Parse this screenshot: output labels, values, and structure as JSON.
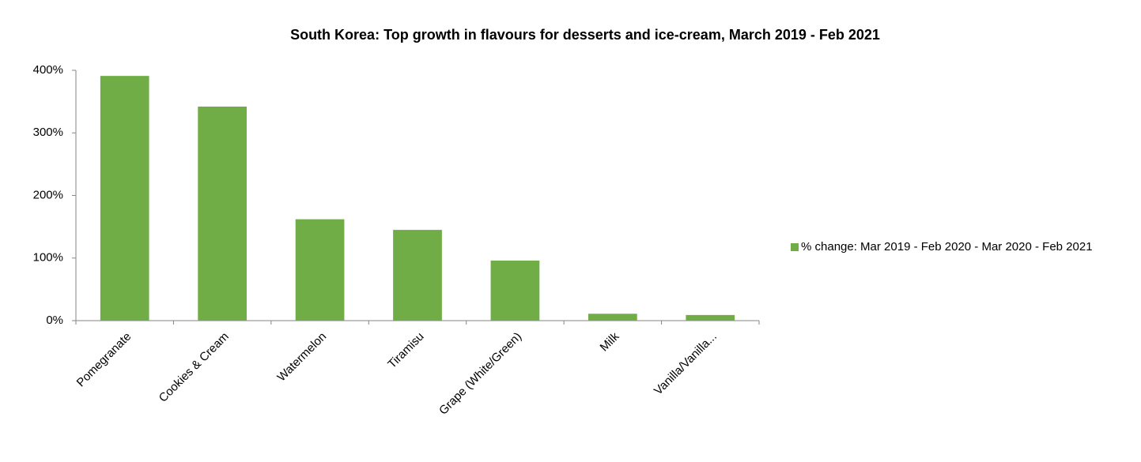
{
  "chart_data": {
    "type": "bar",
    "title": "South Korea: Top growth in flavours for desserts and ice-cream, March 2019 - Feb 2021",
    "categories": [
      "Pomegranate",
      "Cookies & Cream",
      "Watermelon",
      "Tiramisu",
      "Grape (White/Green)",
      "Milk",
      "Vanilla/Vanilla..."
    ],
    "series": [
      {
        "name": "% change: Mar 2019 - Feb 2020 - Mar 2020 - Feb 2021",
        "color": "#70ad47",
        "values": [
          391,
          342,
          162,
          145,
          96,
          11,
          9
        ]
      }
    ],
    "ylim": [
      0,
      400
    ],
    "yticks": [
      {
        "value": 0,
        "label": "0%"
      },
      {
        "value": 100,
        "label": "100%"
      },
      {
        "value": 200,
        "label": "200%"
      },
      {
        "value": 300,
        "label": "300%"
      },
      {
        "value": 400,
        "label": "400%"
      }
    ],
    "legend": "right"
  }
}
